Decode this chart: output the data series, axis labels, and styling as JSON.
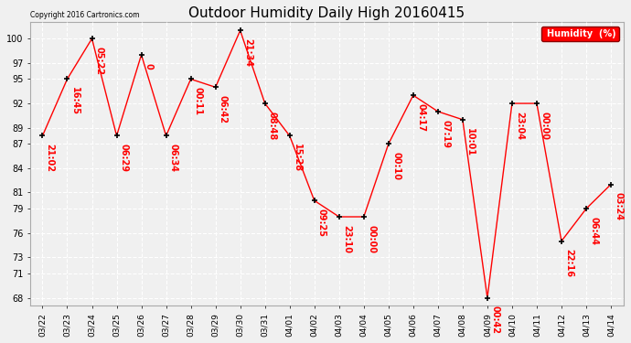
{
  "title": "Outdoor Humidity Daily High 20160415",
  "copyright": "Copyright 2016 Cartronics.com",
  "legend_label": "Humidity  (%)",
  "x_labels": [
    "03/22",
    "03/23",
    "03/24",
    "03/25",
    "03/26",
    "03/27",
    "03/28",
    "03/29",
    "03/30",
    "03/31",
    "04/01",
    "04/02",
    "04/03",
    "04/04",
    "04/05",
    "04/06",
    "04/07",
    "04/08",
    "04/09",
    "04/10",
    "04/11",
    "04/12",
    "04/13",
    "04/14"
  ],
  "y_values": [
    88,
    95,
    100,
    88,
    98,
    88,
    95,
    94,
    101,
    92,
    88,
    80,
    78,
    78,
    87,
    93,
    91,
    90,
    68,
    92,
    92,
    75,
    79,
    82
  ],
  "annotations": [
    "21:02",
    "16:45",
    "05:22",
    "06:29",
    "0",
    "06:34",
    "00:11",
    "06:42",
    "21:34",
    "08:48",
    "15:28",
    "09:25",
    "23:10",
    "00:00",
    "00:10",
    "04:17",
    "07:19",
    "10:01",
    "00:42",
    "23:04",
    "00:00",
    "22:16",
    "06:44",
    "03:24"
  ],
  "ylim_min": 67,
  "ylim_max": 102,
  "yticks": [
    68,
    71,
    73,
    76,
    79,
    81,
    84,
    87,
    89,
    92,
    95,
    97,
    100
  ],
  "bg_color": "#f0f0f0",
  "plot_bg_color": "#f0f0f0",
  "line_color": "#ff0000",
  "marker_color": "#000000",
  "grid_color": "#ffffff",
  "title_fontsize": 11,
  "annotation_color": "#ff0000",
  "annotation_fontsize": 7
}
